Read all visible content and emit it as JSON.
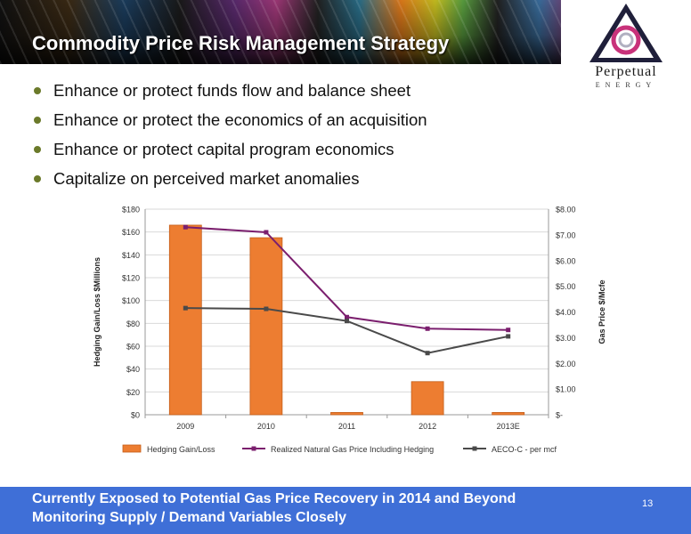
{
  "slide": {
    "title": "Commodity Price Risk Management Strategy",
    "bullets": [
      "Enhance or protect funds flow and balance sheet",
      "Enhance or protect the economics of an acquisition",
      "Enhance or protect capital program economics",
      "Capitalize on perceived market anomalies"
    ],
    "logo": {
      "name": "Perpetual",
      "sub": "ENERGY"
    },
    "footer": {
      "line1": "Currently Exposed to Potential Gas Price Recovery in 2014 and Beyond",
      "line2": "Monitoring Supply / Demand Variables Closely"
    },
    "page_number": "13"
  },
  "chart_data": {
    "type": "bar",
    "categories": [
      "2009",
      "2010",
      "2011",
      "2012",
      "2013E"
    ],
    "ylabel": "Hedging Gain/Loss $Millions",
    "y2label": "Gas Price $/Mcfe",
    "ylim": [
      0,
      180
    ],
    "y2lim": [
      0,
      8
    ],
    "y_ticks": [
      "$0",
      "$20",
      "$40",
      "$60",
      "$80",
      "$100",
      "$120",
      "$140",
      "$160",
      "$180"
    ],
    "y2_ticks": [
      "$-",
      "$1.00",
      "$2.00",
      "$3.00",
      "$4.00",
      "$5.00",
      "$6.00",
      "$7.00",
      "$8.00"
    ],
    "legend_position": "bottom",
    "series": [
      {
        "name": "Hedging Gain/Loss",
        "kind": "bar",
        "axis": "left",
        "color": "#ed7d31",
        "values": [
          166,
          155,
          2,
          29,
          2
        ]
      },
      {
        "name": "Realized Natural Gas Price Including Hedging",
        "kind": "line",
        "axis": "right",
        "color": "#7b1f6e",
        "values": [
          7.3,
          7.1,
          3.8,
          3.35,
          3.3
        ]
      },
      {
        "name": "AECO-C - per mcf",
        "kind": "line",
        "axis": "right",
        "color": "#4a4a4a",
        "values": [
          4.15,
          4.12,
          3.65,
          2.4,
          3.05
        ]
      }
    ]
  }
}
